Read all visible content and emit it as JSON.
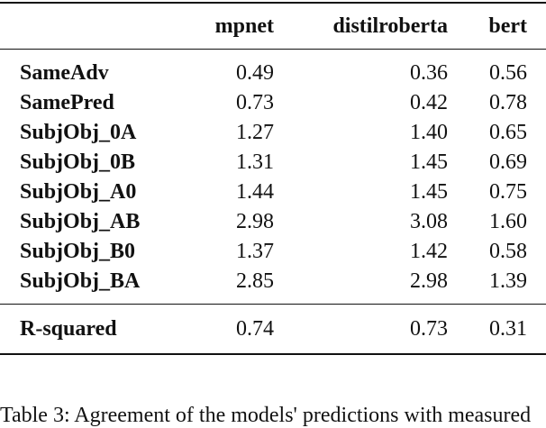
{
  "table": {
    "columns": [
      "mpnet",
      "distilroberta",
      "bert"
    ],
    "rows": [
      {
        "label": "SameAdv",
        "values": [
          "0.49",
          "0.36",
          "0.56"
        ]
      },
      {
        "label": "SamePred",
        "values": [
          "0.73",
          "0.42",
          "0.78"
        ]
      },
      {
        "label": "SubjObj_0A",
        "values": [
          "1.27",
          "1.40",
          "0.65"
        ]
      },
      {
        "label": "SubjObj_0B",
        "values": [
          "1.31",
          "1.45",
          "0.69"
        ]
      },
      {
        "label": "SubjObj_A0",
        "values": [
          "1.44",
          "1.45",
          "0.75"
        ]
      },
      {
        "label": "SubjObj_AB",
        "values": [
          "2.98",
          "3.08",
          "1.60"
        ]
      },
      {
        "label": "SubjObj_B0",
        "values": [
          "1.37",
          "1.42",
          "0.58"
        ]
      },
      {
        "label": "SubjObj_BA",
        "values": [
          "2.85",
          "2.98",
          "1.39"
        ]
      }
    ],
    "summary": {
      "label": "R-squared",
      "values": [
        "0.74",
        "0.73",
        "0.31"
      ]
    }
  },
  "caption": "Table 3: Agreement of the models' predictions with measured"
}
